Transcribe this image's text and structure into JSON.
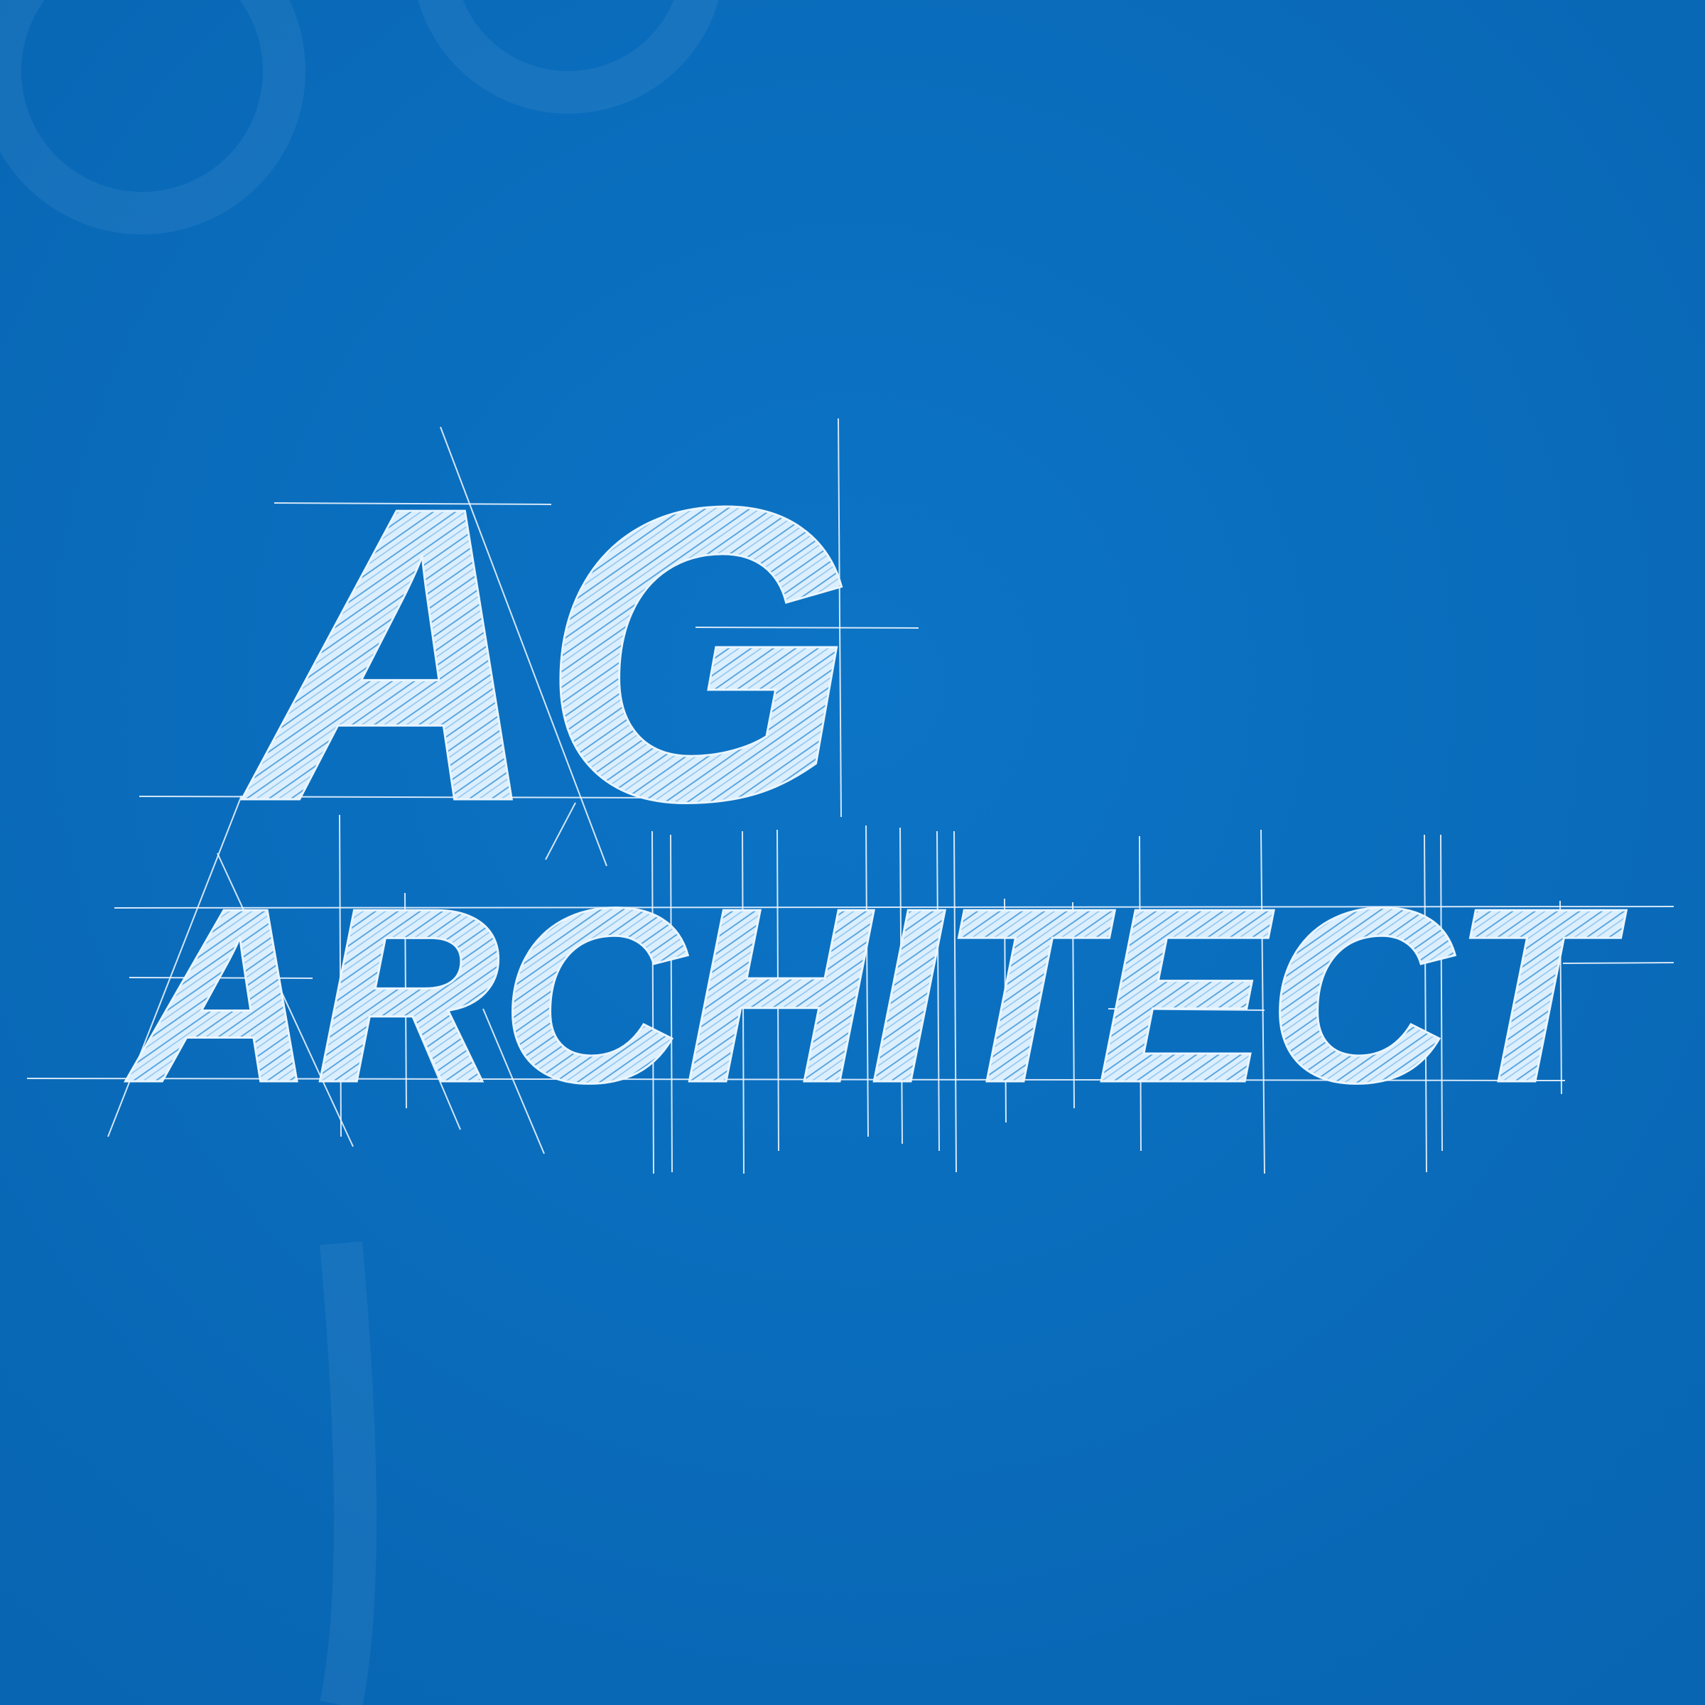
{
  "logo": {
    "monogram": "AG",
    "name": "ARCHITECT"
  }
}
